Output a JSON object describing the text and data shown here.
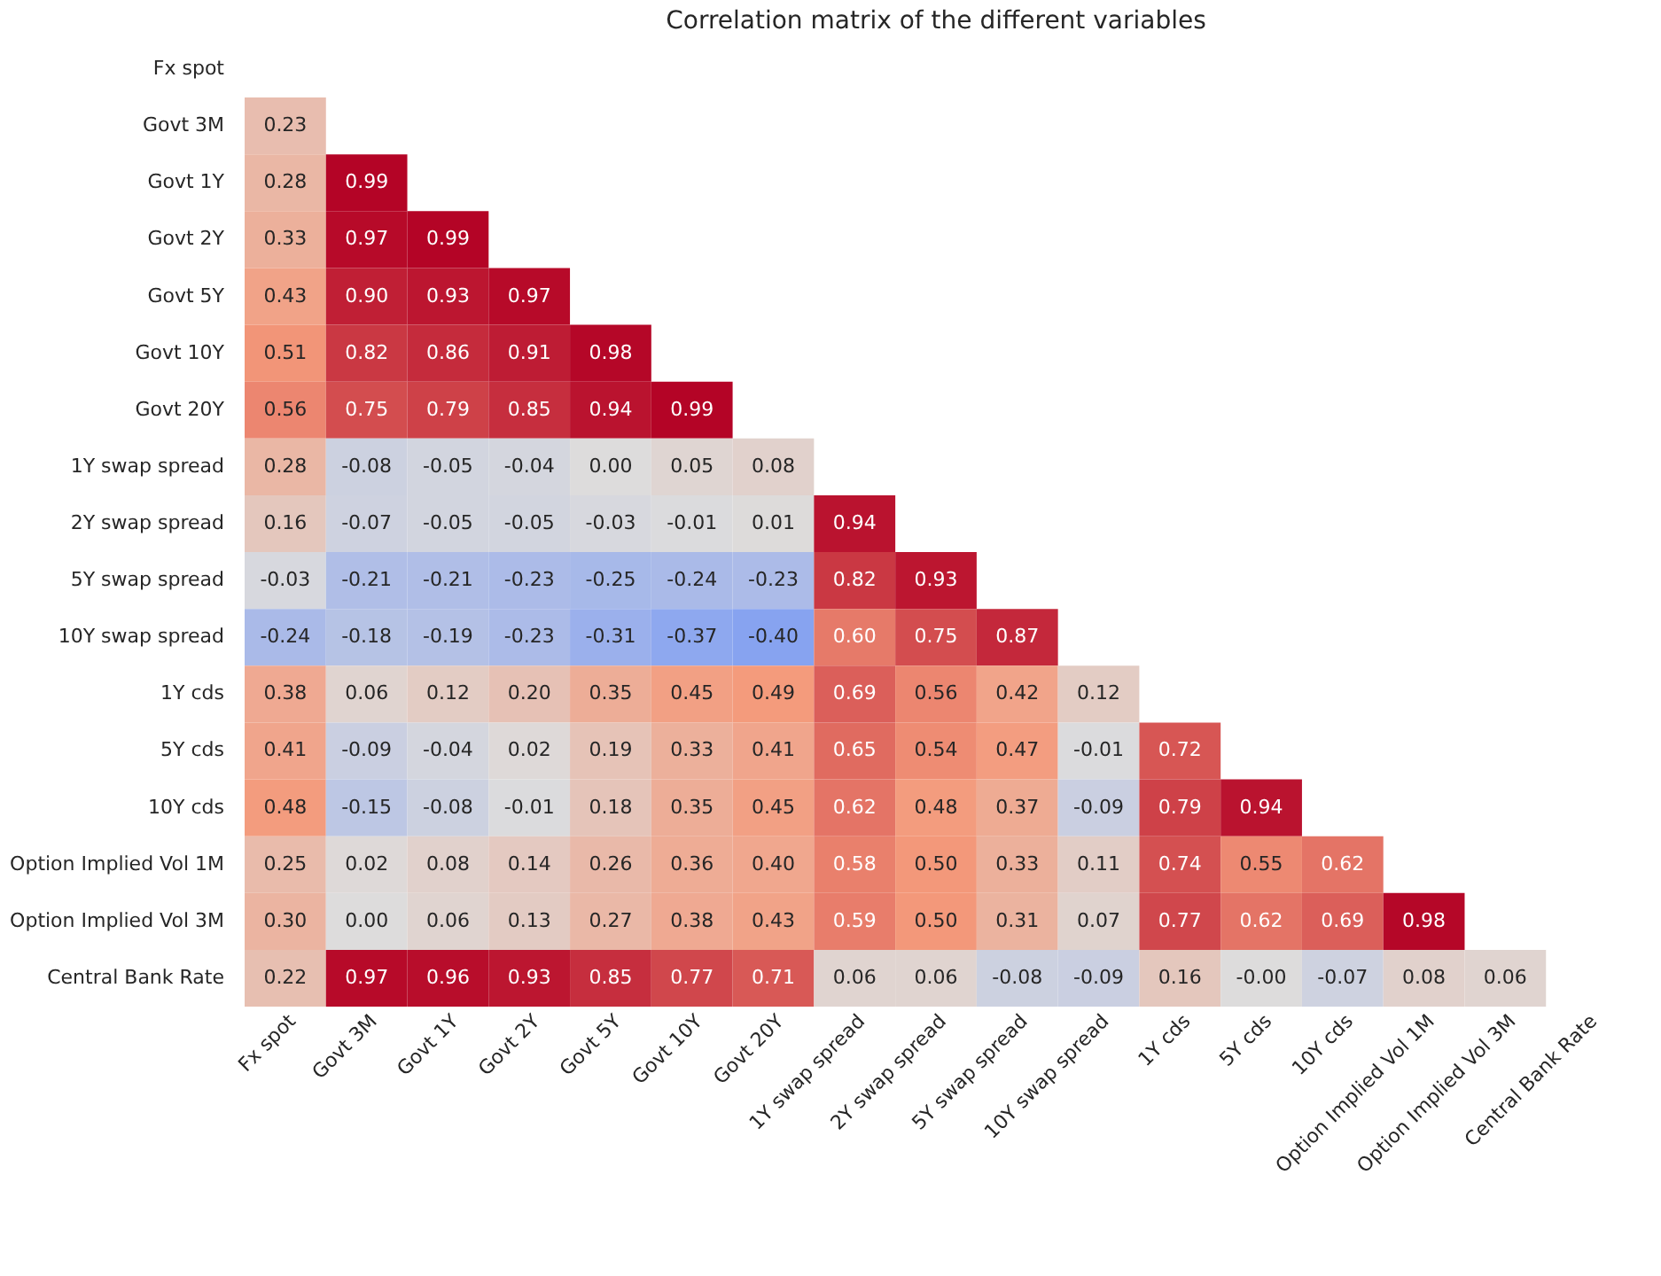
{
  "chart_data": {
    "type": "heatmap",
    "title": "Correlation matrix of the different variables",
    "categories": [
      "Fx spot",
      "Govt 3M",
      "Govt 1Y",
      "Govt 2Y",
      "Govt 5Y",
      "Govt 10Y",
      "Govt 20Y",
      "1Y swap spread",
      "2Y swap spread",
      "5Y swap spread",
      "10Y swap spread",
      "1Y cds",
      "5Y cds",
      "10Y cds",
      "Option Implied Vol 1M",
      "Option Implied Vol 3M",
      "Central Bank Rate"
    ],
    "y_categories": [
      "Fx spot",
      "Govt 3M",
      "Govt 1Y",
      "Govt 2Y",
      "Govt 5Y",
      "Govt 10Y",
      "Govt 20Y",
      "1Y swap spread",
      "2Y swap spread",
      "5Y swap spread",
      "10Y swap spread",
      "1Y cds",
      "5Y cds",
      "10Y cds",
      "Option Implied Vol 1M",
      "Option Implied Vol 3M",
      "Central Bank Rate"
    ],
    "data_labels": true,
    "cells": [
      [
        null,
        null,
        null,
        null,
        null,
        null,
        null,
        null,
        null,
        null,
        null,
        null,
        null,
        null,
        null,
        null,
        null
      ],
      [
        0.23,
        null,
        null,
        null,
        null,
        null,
        null,
        null,
        null,
        null,
        null,
        null,
        null,
        null,
        null,
        null,
        null
      ],
      [
        0.28,
        0.99,
        null,
        null,
        null,
        null,
        null,
        null,
        null,
        null,
        null,
        null,
        null,
        null,
        null,
        null,
        null
      ],
      [
        0.33,
        0.97,
        0.99,
        null,
        null,
        null,
        null,
        null,
        null,
        null,
        null,
        null,
        null,
        null,
        null,
        null,
        null
      ],
      [
        0.43,
        0.9,
        0.93,
        0.97,
        null,
        null,
        null,
        null,
        null,
        null,
        null,
        null,
        null,
        null,
        null,
        null,
        null
      ],
      [
        0.51,
        0.82,
        0.86,
        0.91,
        0.98,
        null,
        null,
        null,
        null,
        null,
        null,
        null,
        null,
        null,
        null,
        null,
        null
      ],
      [
        0.56,
        0.75,
        0.79,
        0.85,
        0.94,
        0.99,
        null,
        null,
        null,
        null,
        null,
        null,
        null,
        null,
        null,
        null,
        null
      ],
      [
        0.28,
        -0.08,
        -0.05,
        -0.04,
        0.0,
        0.05,
        0.08,
        null,
        null,
        null,
        null,
        null,
        null,
        null,
        null,
        null,
        null
      ],
      [
        0.16,
        -0.07,
        -0.05,
        -0.05,
        -0.03,
        -0.01,
        0.01,
        0.94,
        null,
        null,
        null,
        null,
        null,
        null,
        null,
        null,
        null
      ],
      [
        -0.03,
        -0.21,
        -0.21,
        -0.23,
        -0.25,
        -0.24,
        -0.23,
        0.82,
        0.93,
        null,
        null,
        null,
        null,
        null,
        null,
        null,
        null
      ],
      [
        -0.24,
        -0.18,
        -0.19,
        -0.23,
        -0.31,
        -0.37,
        -0.4,
        0.6,
        0.75,
        0.87,
        null,
        null,
        null,
        null,
        null,
        null,
        null
      ],
      [
        0.38,
        0.06,
        0.12,
        0.2,
        0.35,
        0.45,
        0.49,
        0.69,
        0.56,
        0.42,
        0.12,
        null,
        null,
        null,
        null,
        null,
        null
      ],
      [
        0.41,
        -0.09,
        -0.04,
        0.02,
        0.19,
        0.33,
        0.41,
        0.65,
        0.54,
        0.47,
        -0.01,
        0.72,
        null,
        null,
        null,
        null,
        null
      ],
      [
        0.48,
        -0.15,
        -0.08,
        -0.01,
        0.18,
        0.35,
        0.45,
        0.62,
        0.48,
        0.37,
        -0.09,
        0.79,
        0.94,
        null,
        null,
        null,
        null
      ],
      [
        0.25,
        0.02,
        0.08,
        0.14,
        0.26,
        0.36,
        0.4,
        0.58,
        0.5,
        0.33,
        0.11,
        0.74,
        0.55,
        0.62,
        null,
        null,
        null
      ],
      [
        0.3,
        0.0,
        0.06,
        0.13,
        0.27,
        0.38,
        0.43,
        0.59,
        0.5,
        0.31,
        0.07,
        0.77,
        0.62,
        0.69,
        0.98,
        null,
        null
      ],
      [
        0.22,
        0.97,
        0.96,
        0.93,
        0.85,
        0.77,
        0.71,
        0.06,
        0.06,
        -0.08,
        -0.09,
        0.16,
        -0.0,
        -0.07,
        0.08,
        0.06,
        null
      ]
    ],
    "cell_labels": [
      [
        null,
        null,
        null,
        null,
        null,
        null,
        null,
        null,
        null,
        null,
        null,
        null,
        null,
        null,
        null,
        null,
        null
      ],
      [
        "0.23",
        null,
        null,
        null,
        null,
        null,
        null,
        null,
        null,
        null,
        null,
        null,
        null,
        null,
        null,
        null,
        null
      ],
      [
        "0.28",
        "0.99",
        null,
        null,
        null,
        null,
        null,
        null,
        null,
        null,
        null,
        null,
        null,
        null,
        null,
        null,
        null
      ],
      [
        "0.33",
        "0.97",
        "0.99",
        null,
        null,
        null,
        null,
        null,
        null,
        null,
        null,
        null,
        null,
        null,
        null,
        null,
        null
      ],
      [
        "0.43",
        "0.90",
        "0.93",
        "0.97",
        null,
        null,
        null,
        null,
        null,
        null,
        null,
        null,
        null,
        null,
        null,
        null,
        null
      ],
      [
        "0.51",
        "0.82",
        "0.86",
        "0.91",
        "0.98",
        null,
        null,
        null,
        null,
        null,
        null,
        null,
        null,
        null,
        null,
        null,
        null
      ],
      [
        "0.56",
        "0.75",
        "0.79",
        "0.85",
        "0.94",
        "0.99",
        null,
        null,
        null,
        null,
        null,
        null,
        null,
        null,
        null,
        null,
        null
      ],
      [
        "0.28",
        "-0.08",
        "-0.05",
        "-0.04",
        "0.00",
        "0.05",
        "0.08",
        null,
        null,
        null,
        null,
        null,
        null,
        null,
        null,
        null,
        null
      ],
      [
        "0.16",
        "-0.07",
        "-0.05",
        "-0.05",
        "-0.03",
        "-0.01",
        "0.01",
        "0.94",
        null,
        null,
        null,
        null,
        null,
        null,
        null,
        null,
        null
      ],
      [
        "-0.03",
        "-0.21",
        "-0.21",
        "-0.23",
        "-0.25",
        "-0.24",
        "-0.23",
        "0.82",
        "0.93",
        null,
        null,
        null,
        null,
        null,
        null,
        null,
        null
      ],
      [
        "-0.24",
        "-0.18",
        "-0.19",
        "-0.23",
        "-0.31",
        "-0.37",
        "-0.40",
        "0.60",
        "0.75",
        "0.87",
        null,
        null,
        null,
        null,
        null,
        null,
        null
      ],
      [
        "0.38",
        "0.06",
        "0.12",
        "0.20",
        "0.35",
        "0.45",
        "0.49",
        "0.69",
        "0.56",
        "0.42",
        "0.12",
        null,
        null,
        null,
        null,
        null,
        null
      ],
      [
        "0.41",
        "-0.09",
        "-0.04",
        "0.02",
        "0.19",
        "0.33",
        "0.41",
        "0.65",
        "0.54",
        "0.47",
        "-0.01",
        "0.72",
        null,
        null,
        null,
        null,
        null
      ],
      [
        "0.48",
        "-0.15",
        "-0.08",
        "-0.01",
        "0.18",
        "0.35",
        "0.45",
        "0.62",
        "0.48",
        "0.37",
        "-0.09",
        "0.79",
        "0.94",
        null,
        null,
        null,
        null
      ],
      [
        "0.25",
        "0.02",
        "0.08",
        "0.14",
        "0.26",
        "0.36",
        "0.40",
        "0.58",
        "0.50",
        "0.33",
        "0.11",
        "0.74",
        "0.55",
        "0.62",
        null,
        null,
        null
      ],
      [
        "0.30",
        "0.00",
        "0.06",
        "0.13",
        "0.27",
        "0.38",
        "0.43",
        "0.59",
        "0.50",
        "0.31",
        "0.07",
        "0.77",
        "0.62",
        "0.69",
        "0.98",
        null,
        null
      ],
      [
        "0.22",
        "0.97",
        "0.96",
        "0.93",
        "0.85",
        "0.77",
        "0.71",
        "0.06",
        "0.06",
        "-0.08",
        "-0.09",
        "0.16",
        "-0.00",
        "-0.07",
        "0.08",
        "0.06",
        null
      ]
    ]
  }
}
